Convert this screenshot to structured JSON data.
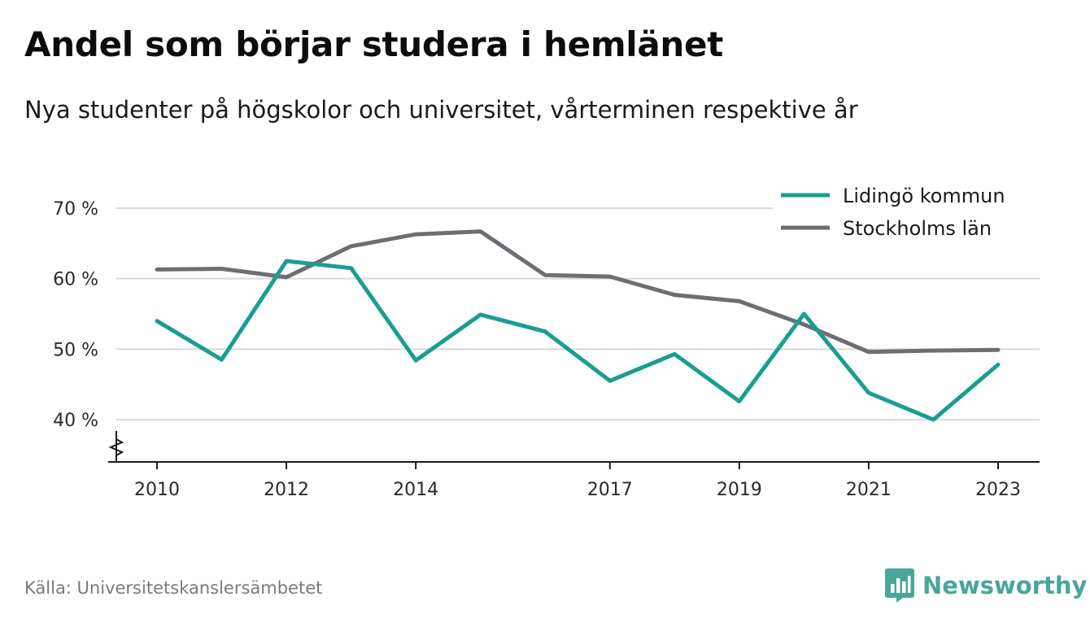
{
  "header": {
    "title": "Andel som börjar studera i hemlänet",
    "subtitle": "Nya studenter på högskolor och universitet, vårterminen respektive år"
  },
  "footer": {
    "source": "Källa: Universitetskanslersämbetet",
    "brand": "Newsworthy"
  },
  "colors": {
    "lidingo": "#1a9e90",
    "stockholm": "#6e6d74",
    "grid": "#d9d9d9",
    "axis": "#1a1a1a",
    "brand": "#4aa59a"
  },
  "chart_data": {
    "type": "line",
    "title": "Andel som börjar studera i hemlänet",
    "subtitle": "Nya studenter på högskolor och universitet, vårterminen respektive år",
    "xlabel": "",
    "ylabel": "",
    "x": [
      2010,
      2011,
      2012,
      2013,
      2014,
      2015,
      2016,
      2017,
      2018,
      2019,
      2020,
      2021,
      2022,
      2023
    ],
    "x_ticks": [
      "2010",
      "2012",
      "2014",
      "2017",
      "2019",
      "2021",
      "2023"
    ],
    "y_ticks": [
      "40 %",
      "50 %",
      "60 %",
      "70 %"
    ],
    "ylim": [
      34,
      70
    ],
    "y_axis_break": true,
    "grid": true,
    "legend_position": "top-right",
    "series": [
      {
        "name": "Lidingö kommun",
        "color": "#1a9e90",
        "values": [
          54.0,
          48.5,
          62.5,
          61.5,
          48.4,
          54.9,
          52.5,
          45.5,
          49.3,
          42.6,
          55.0,
          43.8,
          40.0,
          47.8
        ]
      },
      {
        "name": "Stockholms län",
        "color": "#6e6d74",
        "values": [
          61.3,
          61.4,
          60.2,
          64.6,
          66.3,
          66.7,
          60.5,
          60.3,
          57.7,
          56.8,
          53.5,
          49.6,
          49.8,
          49.9
        ]
      }
    ]
  }
}
